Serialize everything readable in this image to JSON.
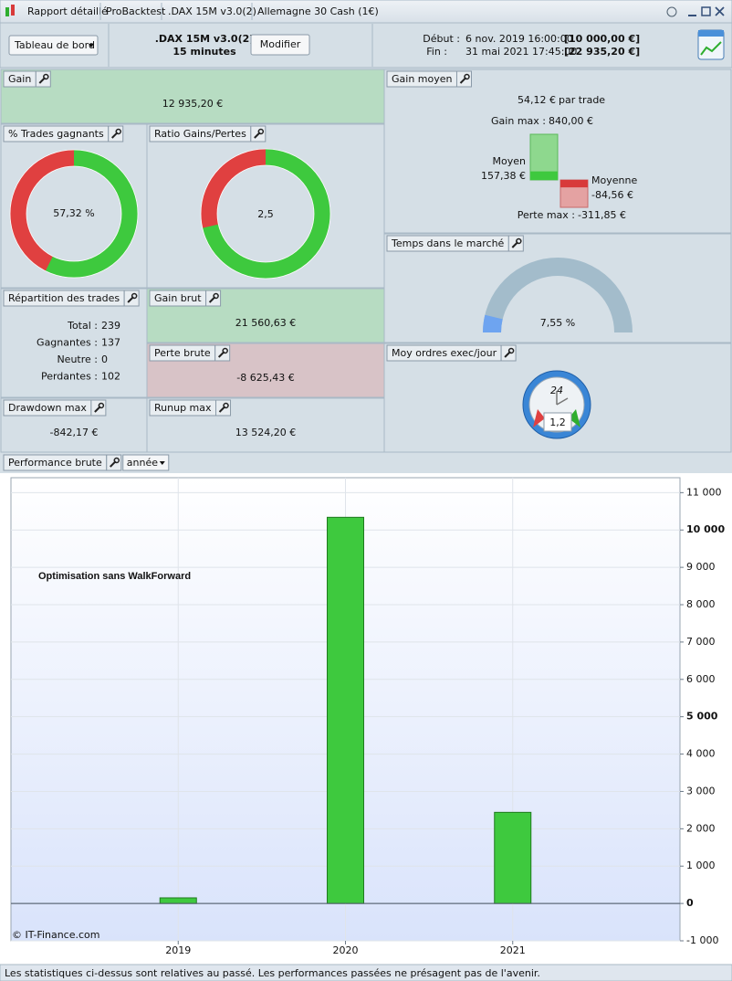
{
  "tabs": [
    "Rapport détaillé",
    "ProBacktest",
    ".DAX 15M v3.0(2)",
    "Allemagne 30 Cash (1€)"
  ],
  "toolbar": {
    "view_menu": "Tableau de bord",
    "system": ".DAX 15M v3.0(2)",
    "timeframe": "15 minutes",
    "edit_button": "Modifier",
    "start_label": "Début :",
    "start_date": "6 nov. 2019 16:00:00",
    "start_capital": "[10 000,00 €]",
    "end_label": "Fin :",
    "end_date": "31 mai 2021 17:45:00",
    "end_capital": "[22 935,20 €]"
  },
  "panels": {
    "gain": {
      "title": "Gain",
      "value": "12 935,20 €"
    },
    "winning_trades": {
      "title": "% Trades gagnants",
      "value": 57.32,
      "value_label": "57,32 %"
    },
    "gain_loss_ratio": {
      "title": "Ratio Gains/Pertes",
      "value": 2.5,
      "value_label": "2,5"
    },
    "average_gain": {
      "title": "Gain moyen",
      "per_trade": "54,12 €",
      "per_trade_suffix": "par trade",
      "max_gain": {
        "label": "Gain max :",
        "value": 840,
        "value_label": "840,00 €"
      },
      "average_win": {
        "label": "Moyen",
        "value": 157.38,
        "value_label": "157,38 €"
      },
      "average_loss": {
        "label": "Moyenne",
        "value": -84.56,
        "value_label": "-84,56 €"
      },
      "max_loss": {
        "label": "Perte max :",
        "value": -311.85,
        "value_label": "-311,85 €"
      }
    },
    "time_in_market": {
      "title": "Temps dans le marché",
      "value": 7.55,
      "value_label": "7,55 %"
    },
    "trade_breakdown": {
      "title": "Répartition des trades",
      "rows": [
        {
          "label": "Total :",
          "value": 239
        },
        {
          "label": "Gagnantes :",
          "value": 137
        },
        {
          "label": "Neutre :",
          "value": 0
        },
        {
          "label": "Perdantes :",
          "value": 102
        }
      ]
    },
    "gross_gain": {
      "title": "Gain brut",
      "value": "21 560,63 €"
    },
    "gross_loss": {
      "title": "Perte brute",
      "value": "-8 625,43 €"
    },
    "orders_per_day": {
      "title": "Moy ordres exec/jour",
      "clock_label": "24",
      "value": "1,2"
    },
    "drawdown": {
      "title": "Drawdown max",
      "value": "-842,17 €"
    },
    "runup": {
      "title": "Runup max",
      "value": "13 524,20 €"
    }
  },
  "chart_data": {
    "type": "bar",
    "title": "Performance brute",
    "period": "année",
    "annotation": "Optimisation sans WalkForward",
    "credit": "© IT-Finance.com",
    "categories": [
      "2019",
      "2020",
      "2021"
    ],
    "values": [
      150,
      10340,
      2440
    ],
    "color": "#3ec93e",
    "ylim": [
      -1000,
      11400
    ],
    "yticks": [
      {
        "value": -1000,
        "label": "-1 000"
      },
      0,
      {
        "value": 1000,
        "label": "1 000"
      },
      {
        "value": 2000,
        "label": "2 000"
      },
      {
        "value": 3000,
        "label": "3 000"
      },
      {
        "value": 4000,
        "label": "4 000"
      },
      {
        "value": 5000,
        "label": "5 000"
      },
      {
        "value": 6000,
        "label": "6 000"
      },
      {
        "value": 7000,
        "label": "7 000"
      },
      {
        "value": 8000,
        "label": "8 000"
      },
      {
        "value": 9000,
        "label": "9 000"
      },
      {
        "value": 10000,
        "label": "10 000"
      },
      {
        "value": 11000,
        "label": "11 000"
      }
    ],
    "grid": true
  },
  "footer": "Les statistiques ci-dessus sont relatives au passé. Les performances passées ne présagent pas de l'avenir."
}
